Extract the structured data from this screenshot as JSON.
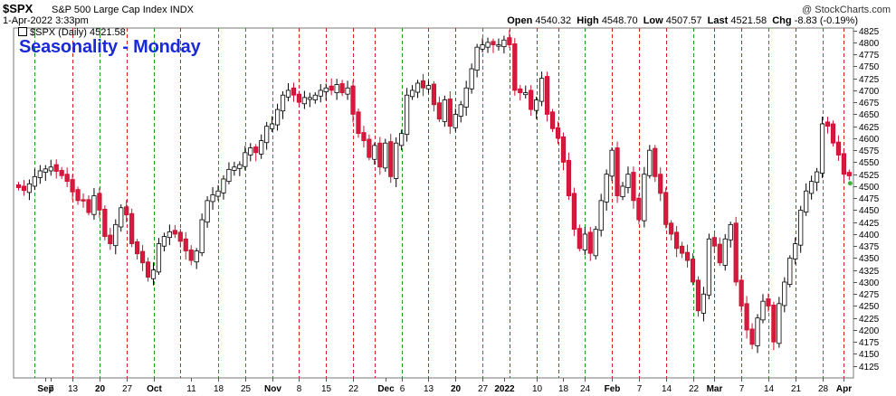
{
  "header": {
    "symbol": "$SPX",
    "name": "S&P 500 Large Cap Index",
    "exchange": "INDX",
    "timestamp": "1-Apr-2022 3:33pm",
    "watermark": "@ StockCharts.com",
    "quote": {
      "open_label": "Open",
      "open": "4540.32",
      "high_label": "High",
      "high": "4548.70",
      "low_label": "Low",
      "low": "4507.57",
      "last_label": "Last",
      "last": "4521.58",
      "chg_label": "Chg",
      "chg": "-8.83 (-0.19%)"
    }
  },
  "chart_data": {
    "type": "candlestick",
    "title": "Seasonality - Monday",
    "legend": "$SPX (Daily) 4521.58",
    "ylim": [
      4100,
      4830
    ],
    "yticks": [
      4125,
      4150,
      4175,
      4200,
      4225,
      4250,
      4275,
      4300,
      4325,
      4350,
      4375,
      4400,
      4425,
      4450,
      4475,
      4500,
      4525,
      4550,
      4575,
      4600,
      4625,
      4650,
      4675,
      4700,
      4725,
      4750,
      4775,
      4800,
      4825
    ],
    "xtick_labels": [
      {
        "label": "Sep",
        "i": 5
      },
      {
        "label": "7",
        "i": 6
      },
      {
        "label": "13",
        "i": 10
      },
      {
        "label": "20",
        "i": 15
      },
      {
        "label": "27",
        "i": 20
      },
      {
        "label": "Oct",
        "i": 25
      },
      {
        "label": "11",
        "i": 32
      },
      {
        "label": "18",
        "i": 37
      },
      {
        "label": "25",
        "i": 42
      },
      {
        "label": "Nov",
        "i": 47
      },
      {
        "label": "8",
        "i": 52
      },
      {
        "label": "15",
        "i": 57
      },
      {
        "label": "22",
        "i": 62
      },
      {
        "label": "Dec",
        "i": 68
      },
      {
        "label": "6",
        "i": 71
      },
      {
        "label": "13",
        "i": 76
      },
      {
        "label": "20",
        "i": 81
      },
      {
        "label": "27",
        "i": 86
      },
      {
        "label": "2022",
        "i": 90
      },
      {
        "label": "10",
        "i": 96
      },
      {
        "label": "18",
        "i": 101
      },
      {
        "label": "24",
        "i": 105
      },
      {
        "label": "Feb",
        "i": 110
      },
      {
        "label": "7",
        "i": 115
      },
      {
        "label": "14",
        "i": 120
      },
      {
        "label": "22",
        "i": 125
      },
      {
        "label": "Mar",
        "i": 129
      },
      {
        "label": "7",
        "i": 134
      },
      {
        "label": "14",
        "i": 139
      },
      {
        "label": "21",
        "i": 144
      },
      {
        "label": "28",
        "i": 149
      },
      {
        "label": "Apr",
        "i": 153
      }
    ],
    "monday_lines": [
      {
        "i": 3,
        "color": "green"
      },
      {
        "i": 10,
        "color": "red"
      },
      {
        "i": 15,
        "color": "green"
      },
      {
        "i": 20,
        "color": "red"
      },
      {
        "i": 25,
        "color": "green"
      },
      {
        "i": 30,
        "color": "red"
      },
      {
        "i": 37,
        "color": "green"
      },
      {
        "i": 42,
        "color": "green"
      },
      {
        "i": 47,
        "color": "green"
      },
      {
        "i": 52,
        "color": "red"
      },
      {
        "i": 57,
        "color": "red"
      },
      {
        "i": 62,
        "color": "red"
      },
      {
        "i": 66,
        "color": "red"
      },
      {
        "i": 71,
        "color": "green"
      },
      {
        "i": 76,
        "color": "red"
      },
      {
        "i": 81,
        "color": "red"
      },
      {
        "i": 86,
        "color": "green"
      },
      {
        "i": 91,
        "color": "red"
      },
      {
        "i": 96,
        "color": "red"
      },
      {
        "i": 100,
        "color": "red"
      },
      {
        "i": 105,
        "color": "green"
      },
      {
        "i": 110,
        "color": "red"
      },
      {
        "i": 115,
        "color": "red"
      },
      {
        "i": 120,
        "color": "red"
      },
      {
        "i": 125,
        "color": "green"
      },
      {
        "i": 129,
        "color": "red"
      },
      {
        "i": 134,
        "color": "red"
      },
      {
        "i": 139,
        "color": "green"
      },
      {
        "i": 144,
        "color": "red"
      },
      {
        "i": 149,
        "color": "green"
      },
      {
        "i": 153,
        "color": "red"
      }
    ],
    "closes": [
      4497,
      4491,
      4505,
      4520,
      4532,
      4536,
      4540,
      4531,
      4522,
      4510,
      4488,
      4470,
      4469,
      4445,
      4480,
      4450,
      4395,
      4380,
      4420,
      4455,
      4440,
      4380,
      4359,
      4340,
      4310,
      4325,
      4380,
      4395,
      4405,
      4400,
      4385,
      4365,
      4345,
      4365,
      4430,
      4470,
      4482,
      4490,
      4515,
      4535,
      4540,
      4545,
      4570,
      4580,
      4570,
      4595,
      4625,
      4630,
      4660,
      4690,
      4700,
      4690,
      4675,
      4685,
      4685,
      4690,
      4700,
      4705,
      4700,
      4712,
      4695,
      4705,
      4650,
      4610,
      4595,
      4560,
      4585,
      4540,
      4590,
      4520,
      4590,
      4610,
      4690,
      4700,
      4715,
      4705,
      4710,
      4670,
      4640,
      4680,
      4625,
      4650,
      4670,
      4705,
      4745,
      4790,
      4795,
      4800,
      4795,
      4795,
      4805,
      4795,
      4700,
      4695,
      4695,
      4660,
      4680,
      4725,
      4650,
      4620,
      4600,
      4550,
      4480,
      4410,
      4370,
      4400,
      4360,
      4410,
      4470,
      4525,
      4575,
      4480,
      4500,
      4525,
      4470,
      4430,
      4525,
      4575,
      4520,
      4485,
      4420,
      4400,
      4370,
      4360,
      4345,
      4300,
      4240,
      4275,
      4390,
      4375,
      4340,
      4390,
      4420,
      4300,
      4250,
      4200,
      4170,
      4225,
      4260,
      4250,
      4175,
      4255,
      4300,
      4350,
      4380,
      4450,
      4490,
      4510,
      4530,
      4630,
      4625,
      4590,
      4565,
      4525,
      4521.58
    ]
  }
}
